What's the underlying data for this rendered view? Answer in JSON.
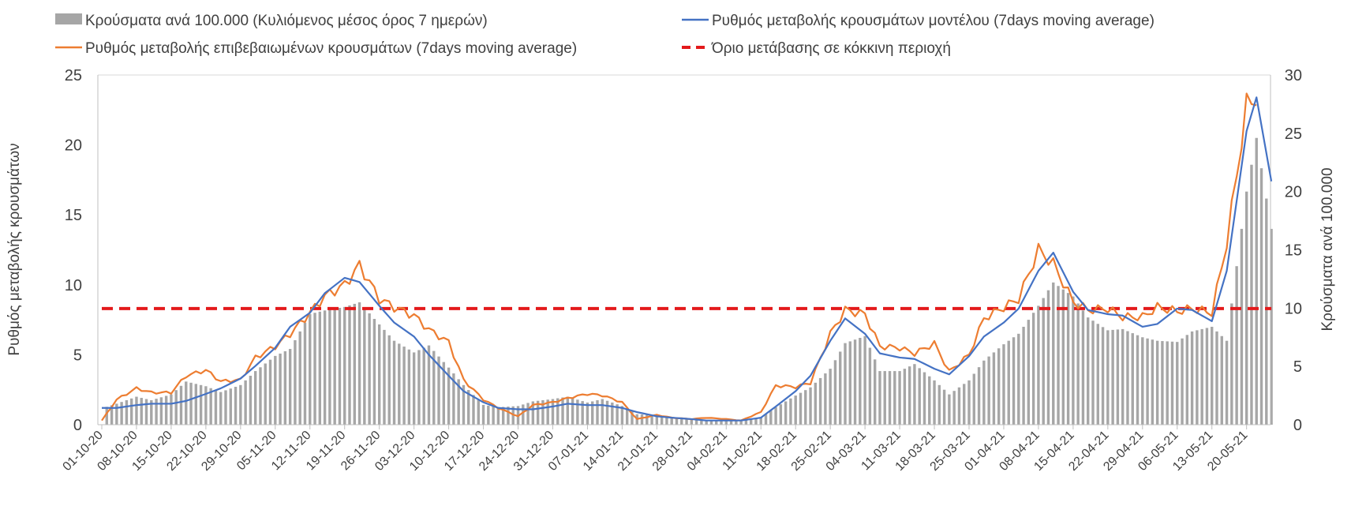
{
  "chart_data": {
    "type": "bar+line",
    "title": "",
    "legend": {
      "placement": "top",
      "entries": [
        {
          "key": "bars",
          "label": "Κρούσματα ανά 100.000 (Κυλιόμενος μέσος όρος 7 ημερών)",
          "color": "#a6a6a6"
        },
        {
          "key": "model",
          "label": "Ρυθμός μεταβολής κρουσμάτων μοντέλου (7days moving average)",
          "color": "#4472c4"
        },
        {
          "key": "confirmed",
          "label": "Ρυθμός μεταβολής επιβεβαιωμένων κρουσμάτων (7days moving average)",
          "color": "#ed7d31"
        },
        {
          "key": "threshold",
          "label": "Όριο μετάβασης σε κόκκινη περιοχή",
          "color": "#e31a1c"
        }
      ]
    },
    "y_left": {
      "label": "Ρυθμός μεταβολής κρουσμάτων",
      "range": [
        0,
        25
      ],
      "ticks": [
        "0",
        "5",
        "10",
        "15",
        "20",
        "25"
      ]
    },
    "y_right": {
      "label": "Κρούσματα ανά 100.000",
      "range": [
        0,
        30
      ],
      "ticks": [
        "0",
        "5",
        "10",
        "15",
        "20",
        "25",
        "30"
      ]
    },
    "x_tick_labels": [
      "01-10-20",
      "08-10-20",
      "15-10-20",
      "22-10-20",
      "29-10-20",
      "05-11-20",
      "12-11-20",
      "19-11-20",
      "26-11-20",
      "03-12-20",
      "10-12-20",
      "17-12-20",
      "24-12-20",
      "31-12-20",
      "07-01-21",
      "14-01-21",
      "21-01-21",
      "28-01-21",
      "04-02-21",
      "11-02-21",
      "18-02-21",
      "25-02-21",
      "04-03-21",
      "11-03-21",
      "18-03-21",
      "25-03-21",
      "01-04-21",
      "08-04-21",
      "15-04-21",
      "22-04-21",
      "29-04-21",
      "06-05-21",
      "13-05-21",
      "20-05-21"
    ],
    "days_between_ticks": 7,
    "total_days": 236,
    "threshold_value_left_axis": 8.3,
    "bars_per_100k_anchors": [
      [
        0,
        1.4
      ],
      [
        3,
        1.8
      ],
      [
        7,
        2.4
      ],
      [
        10,
        2.1
      ],
      [
        14,
        2.6
      ],
      [
        17,
        3.7
      ],
      [
        21,
        3.3
      ],
      [
        24,
        2.8
      ],
      [
        28,
        3.4
      ],
      [
        31,
        4.6
      ],
      [
        35,
        5.9
      ],
      [
        38,
        6.5
      ],
      [
        42,
        9.5
      ],
      [
        45,
        9.8
      ],
      [
        49,
        10.1
      ],
      [
        52,
        10.5
      ],
      [
        56,
        8.6
      ],
      [
        59,
        7.2
      ],
      [
        63,
        6.2
      ],
      [
        66,
        6.8
      ],
      [
        70,
        4.9
      ],
      [
        73,
        3.4
      ],
      [
        77,
        1.7
      ],
      [
        80,
        1.5
      ],
      [
        84,
        1.6
      ],
      [
        87,
        2.0
      ],
      [
        91,
        2.2
      ],
      [
        94,
        2.4
      ],
      [
        98,
        1.9
      ],
      [
        101,
        2.2
      ],
      [
        105,
        1.6
      ],
      [
        108,
        0.9
      ],
      [
        112,
        0.8
      ],
      [
        115,
        0.6
      ],
      [
        119,
        0.5
      ],
      [
        122,
        0.4
      ],
      [
        126,
        0.4
      ],
      [
        129,
        0.3
      ],
      [
        133,
        0.6
      ],
      [
        136,
        1.5
      ],
      [
        140,
        2.5
      ],
      [
        143,
        3.2
      ],
      [
        147,
        4.8
      ],
      [
        150,
        7.0
      ],
      [
        154,
        7.6
      ],
      [
        157,
        4.6
      ],
      [
        161,
        4.6
      ],
      [
        164,
        5.2
      ],
      [
        168,
        3.8
      ],
      [
        171,
        2.6
      ],
      [
        175,
        3.8
      ],
      [
        178,
        5.5
      ],
      [
        182,
        6.9
      ],
      [
        185,
        7.8
      ],
      [
        189,
        10.2
      ],
      [
        192,
        12.2
      ],
      [
        196,
        11.0
      ],
      [
        199,
        9.2
      ],
      [
        203,
        8.1
      ],
      [
        206,
        8.2
      ],
      [
        210,
        7.5
      ],
      [
        213,
        7.2
      ],
      [
        217,
        7.1
      ],
      [
        220,
        8.0
      ],
      [
        224,
        8.4
      ],
      [
        227,
        7.2
      ],
      [
        231,
        20.0
      ],
      [
        233,
        24.6
      ],
      [
        236,
        16.8
      ]
    ],
    "model_rate_anchors": [
      [
        0,
        1.2
      ],
      [
        3,
        1.2
      ],
      [
        7,
        1.4
      ],
      [
        10,
        1.5
      ],
      [
        14,
        1.5
      ],
      [
        17,
        1.7
      ],
      [
        21,
        2.2
      ],
      [
        24,
        2.6
      ],
      [
        28,
        3.3
      ],
      [
        31,
        4.2
      ],
      [
        35,
        5.5
      ],
      [
        38,
        7.0
      ],
      [
        42,
        8.0
      ],
      [
        45,
        9.4
      ],
      [
        49,
        10.5
      ],
      [
        52,
        10.2
      ],
      [
        56,
        8.5
      ],
      [
        59,
        7.3
      ],
      [
        63,
        6.3
      ],
      [
        66,
        5.0
      ],
      [
        70,
        3.5
      ],
      [
        73,
        2.4
      ],
      [
        77,
        1.6
      ],
      [
        80,
        1.2
      ],
      [
        84,
        1.1
      ],
      [
        87,
        1.1
      ],
      [
        91,
        1.3
      ],
      [
        94,
        1.5
      ],
      [
        98,
        1.4
      ],
      [
        101,
        1.4
      ],
      [
        105,
        1.2
      ],
      [
        108,
        0.9
      ],
      [
        112,
        0.6
      ],
      [
        115,
        0.5
      ],
      [
        119,
        0.4
      ],
      [
        122,
        0.3
      ],
      [
        126,
        0.3
      ],
      [
        129,
        0.3
      ],
      [
        133,
        0.5
      ],
      [
        136,
        1.3
      ],
      [
        140,
        2.4
      ],
      [
        143,
        3.5
      ],
      [
        147,
        6.0
      ],
      [
        150,
        7.6
      ],
      [
        154,
        6.5
      ],
      [
        157,
        5.1
      ],
      [
        161,
        4.8
      ],
      [
        164,
        4.7
      ],
      [
        168,
        4.0
      ],
      [
        171,
        3.6
      ],
      [
        175,
        4.9
      ],
      [
        178,
        6.3
      ],
      [
        182,
        7.3
      ],
      [
        185,
        8.3
      ],
      [
        189,
        11.0
      ],
      [
        192,
        12.3
      ],
      [
        196,
        9.5
      ],
      [
        199,
        8.2
      ],
      [
        203,
        7.9
      ],
      [
        206,
        7.8
      ],
      [
        210,
        7.0
      ],
      [
        213,
        7.2
      ],
      [
        217,
        8.3
      ],
      [
        220,
        8.2
      ],
      [
        224,
        7.4
      ],
      [
        227,
        11.0
      ],
      [
        231,
        21.0
      ],
      [
        233,
        23.4
      ],
      [
        236,
        17.4
      ]
    ],
    "confirmed_rate_anchors": [
      [
        0,
        0.3
      ],
      [
        3,
        1.8
      ],
      [
        7,
        2.6
      ],
      [
        10,
        2.3
      ],
      [
        14,
        2.3
      ],
      [
        17,
        3.5
      ],
      [
        21,
        3.9
      ],
      [
        24,
        3.1
      ],
      [
        28,
        3.2
      ],
      [
        31,
        4.8
      ],
      [
        35,
        5.6
      ],
      [
        38,
        6.5
      ],
      [
        42,
        8.0
      ],
      [
        45,
        9.2
      ],
      [
        49,
        10.0
      ],
      [
        52,
        11.4
      ],
      [
        56,
        9.0
      ],
      [
        59,
        8.4
      ],
      [
        63,
        7.8
      ],
      [
        66,
        6.8
      ],
      [
        70,
        5.9
      ],
      [
        73,
        3.2
      ],
      [
        77,
        1.8
      ],
      [
        80,
        1.2
      ],
      [
        84,
        0.6
      ],
      [
        87,
        1.4
      ],
      [
        91,
        1.6
      ],
      [
        94,
        1.9
      ],
      [
        98,
        2.2
      ],
      [
        101,
        2.1
      ],
      [
        105,
        1.6
      ],
      [
        108,
        0.4
      ],
      [
        112,
        0.7
      ],
      [
        115,
        0.5
      ],
      [
        119,
        0.4
      ],
      [
        122,
        0.5
      ],
      [
        126,
        0.4
      ],
      [
        129,
        0.3
      ],
      [
        133,
        0.9
      ],
      [
        136,
        2.8
      ],
      [
        140,
        2.7
      ],
      [
        143,
        3.0
      ],
      [
        147,
        6.5
      ],
      [
        150,
        8.2
      ],
      [
        154,
        7.9
      ],
      [
        157,
        5.6
      ],
      [
        161,
        5.5
      ],
      [
        164,
        5.1
      ],
      [
        168,
        5.8
      ],
      [
        171,
        3.8
      ],
      [
        175,
        5.0
      ],
      [
        178,
        7.6
      ],
      [
        182,
        8.4
      ],
      [
        185,
        9.0
      ],
      [
        189,
        12.5
      ],
      [
        192,
        11.5
      ],
      [
        196,
        8.8
      ],
      [
        199,
        8.2
      ],
      [
        203,
        8.3
      ],
      [
        206,
        7.7
      ],
      [
        210,
        7.7
      ],
      [
        213,
        8.4
      ],
      [
        217,
        8.1
      ],
      [
        220,
        8.3
      ],
      [
        224,
        8.0
      ],
      [
        227,
        13.0
      ],
      [
        231,
        22.8
      ],
      [
        233,
        23.5
      ]
    ]
  }
}
